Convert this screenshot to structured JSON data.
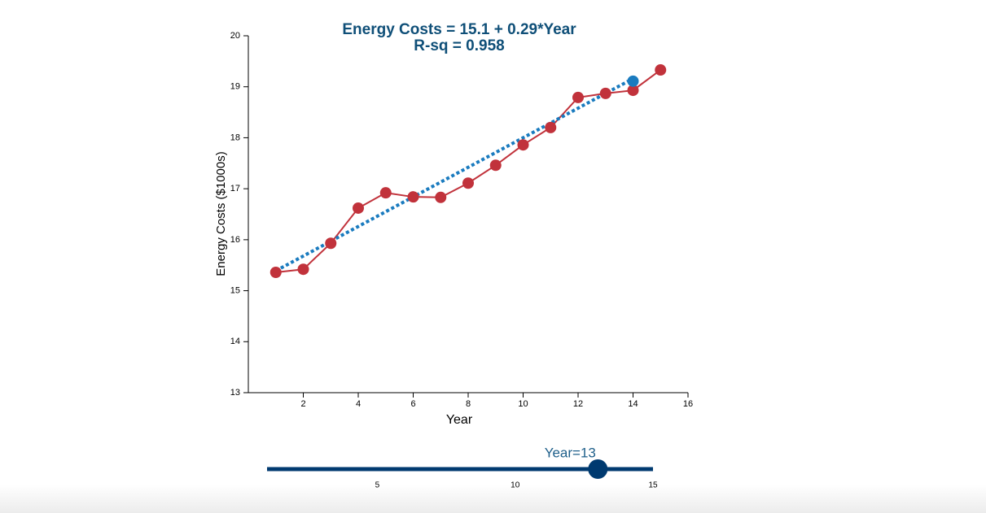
{
  "chart_data": {
    "type": "line",
    "title": "Energy Costs = 15.1 + 0.29*Year",
    "subtitle": "R-sq = 0.958",
    "x_label": "Year",
    "y_label": "Energy Costs ($1000s)",
    "x": [
      1,
      2,
      3,
      4,
      5,
      6,
      7,
      8,
      9,
      10,
      11,
      12,
      13,
      14,
      15
    ],
    "values": [
      15.36,
      15.42,
      15.93,
      16.62,
      16.92,
      16.84,
      16.83,
      17.11,
      17.46,
      17.86,
      18.2,
      18.79,
      18.87,
      18.93,
      19.33
    ],
    "color": "#c1323b",
    "fit": {
      "x": [
        1,
        14
      ],
      "values": [
        15.39,
        19.16
      ],
      "color": "#1a7bbf"
    },
    "prediction": {
      "x": 14,
      "value": 19.11,
      "color": "#1a7bbf"
    },
    "xlim": [
      0,
      16
    ],
    "xticks": [
      2,
      4,
      6,
      8,
      10,
      12,
      14,
      16
    ],
    "ylim": [
      13,
      20
    ],
    "yticks": [
      13,
      14,
      15,
      16,
      17,
      18,
      19,
      20
    ]
  },
  "slider": {
    "label": "Year=13",
    "value": 13,
    "min": 1,
    "max": 15,
    "ticks": [
      5,
      10,
      15
    ],
    "color": "#003a70"
  }
}
